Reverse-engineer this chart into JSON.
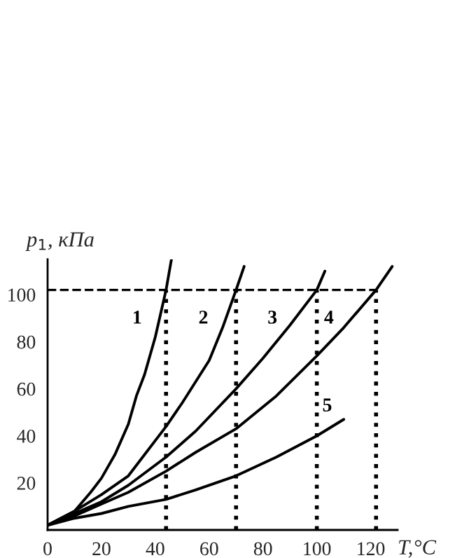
{
  "chart_data": {
    "type": "line",
    "xlabel": "T,°C",
    "ylabel": "p$_{1}$, кПа",
    "xlim": [
      0,
      130
    ],
    "ylim": [
      0,
      115
    ],
    "xticks": [
      0,
      20,
      40,
      60,
      80,
      100,
      120
    ],
    "yticks": [
      20,
      40,
      60,
      80,
      100
    ],
    "grid": false,
    "line_style": "solid",
    "marker": "none",
    "series": [
      {
        "name": "1",
        "color": "#000000",
        "x": [
          0,
          10,
          16,
          20,
          25,
          30,
          33,
          36,
          40,
          44,
          46
        ],
        "values": [
          2,
          8,
          16,
          22,
          32,
          45,
          57,
          66,
          82,
          102,
          115
        ]
      },
      {
        "name": "2",
        "color": "#000000",
        "x": [
          0,
          10,
          20,
          30,
          44,
          50,
          60,
          65,
          70,
          73
        ],
        "values": [
          2,
          8,
          15,
          23,
          44,
          54,
          72,
          86,
          102,
          112
        ]
      },
      {
        "name": "3",
        "color": "#000000",
        "x": [
          0,
          10,
          20,
          30,
          44,
          55,
          70,
          80,
          90,
          100,
          103
        ],
        "values": [
          2,
          7,
          12,
          19,
          31,
          42,
          60,
          73,
          87,
          102,
          110
        ]
      },
      {
        "name": "4",
        "color": "#000000",
        "x": [
          0,
          10,
          20,
          30,
          44,
          55,
          70,
          85,
          100,
          110,
          122,
          128
        ],
        "values": [
          2,
          6,
          11,
          16,
          25,
          33,
          43,
          57,
          74,
          86,
          102,
          112
        ]
      },
      {
        "name": "5",
        "color": "#000000",
        "x": [
          0,
          10,
          20,
          30,
          44,
          55,
          70,
          85,
          100,
          110
        ],
        "values": [
          2,
          5,
          7,
          10,
          13,
          17,
          23,
          31,
          40,
          47
        ]
      }
    ],
    "ref_lines": [
      {
        "axis": "y",
        "value": 102,
        "line_style": "dashed",
        "color": "#000000"
      },
      {
        "axis": "x",
        "value": 44,
        "line_style": "dotted",
        "color": "#000000"
      },
      {
        "axis": "x",
        "value": 70,
        "line_style": "dotted",
        "color": "#000000"
      },
      {
        "axis": "x",
        "value": 100,
        "line_style": "dotted",
        "color": "#000000"
      },
      {
        "axis": "x",
        "value": 122,
        "line_style": "dotted",
        "color": "#000000"
      }
    ]
  }
}
